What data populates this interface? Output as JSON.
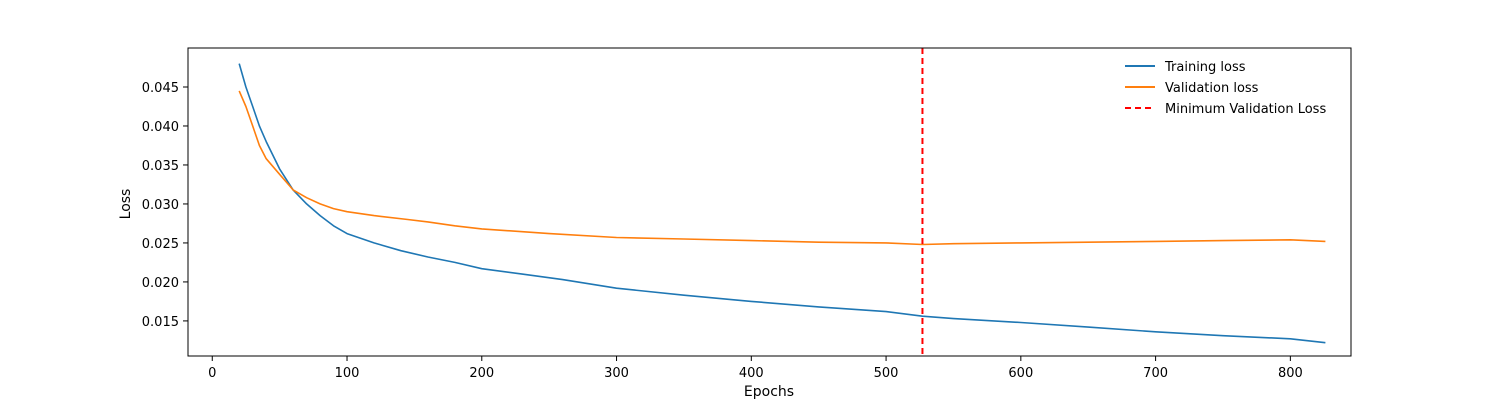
{
  "chart_data": {
    "type": "line",
    "xlabel": "Epochs",
    "ylabel": "Loss",
    "xlim": [
      -18,
      845
    ],
    "ylim": [
      0.0105,
      0.05
    ],
    "x_ticks": [
      0,
      100,
      200,
      300,
      400,
      500,
      600,
      700,
      800
    ],
    "y_ticks": [
      0.015,
      0.02,
      0.025,
      0.03,
      0.035,
      0.04,
      0.045
    ],
    "x_tick_labels": [
      "0",
      "100",
      "200",
      "300",
      "400",
      "500",
      "600",
      "700",
      "800"
    ],
    "y_tick_labels": [
      "0.015",
      "0.020",
      "0.025",
      "0.030",
      "0.035",
      "0.040",
      "0.045"
    ],
    "grid": false,
    "legend_position": "top-right",
    "series": [
      {
        "name": "Training loss",
        "color": "#1f77b4",
        "x": [
          20,
          25,
          30,
          35,
          40,
          50,
          60,
          70,
          80,
          90,
          100,
          120,
          140,
          160,
          180,
          200,
          230,
          260,
          300,
          350,
          400,
          450,
          500,
          527,
          550,
          600,
          650,
          700,
          750,
          800,
          826
        ],
        "y": [
          0.048,
          0.045,
          0.0425,
          0.04,
          0.038,
          0.0345,
          0.0318,
          0.03,
          0.0285,
          0.0272,
          0.0262,
          0.025,
          0.024,
          0.0232,
          0.0225,
          0.0217,
          0.021,
          0.0203,
          0.0192,
          0.0183,
          0.0175,
          0.0168,
          0.0162,
          0.0156,
          0.0153,
          0.0148,
          0.0142,
          0.0136,
          0.0131,
          0.0127,
          0.0122
        ]
      },
      {
        "name": "Validation loss",
        "color": "#ff7f0e",
        "x": [
          20,
          25,
          30,
          35,
          40,
          50,
          60,
          70,
          80,
          90,
          100,
          120,
          145,
          160,
          180,
          200,
          250,
          300,
          350,
          400,
          450,
          500,
          527,
          550,
          600,
          650,
          700,
          750,
          800,
          826
        ],
        "y": [
          0.0445,
          0.0425,
          0.04,
          0.0375,
          0.0358,
          0.0338,
          0.0318,
          0.0308,
          0.03,
          0.0294,
          0.029,
          0.0285,
          0.028,
          0.0277,
          0.0272,
          0.0268,
          0.0262,
          0.0257,
          0.0255,
          0.0253,
          0.0251,
          0.025,
          0.0248,
          0.0249,
          0.025,
          0.0251,
          0.0252,
          0.0253,
          0.0254,
          0.0252
        ]
      }
    ],
    "vlines": [
      {
        "name": "Minimum Validation Loss",
        "x": 527,
        "color": "#ff0000",
        "style": "dashed"
      }
    ]
  }
}
